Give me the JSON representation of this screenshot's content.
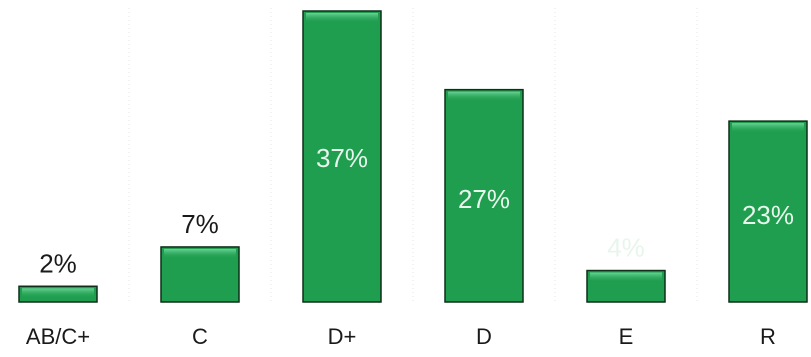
{
  "chart_data": {
    "type": "bar",
    "title": "",
    "xlabel": "",
    "ylabel": "",
    "categories": [
      "AB/C+",
      "C",
      "D+",
      "D",
      "E",
      "R"
    ],
    "values": [
      2,
      7,
      37,
      27,
      4,
      23
    ],
    "value_labels": [
      "2%",
      "7%",
      "37%",
      "27%",
      "4%",
      "23%"
    ],
    "value_unit": "%",
    "ylim": [
      0,
      37
    ],
    "grid": false,
    "legend": "none",
    "bar_color": "#1f9e4f",
    "bar_border_color": "#0f2f18",
    "label_inside_color": "#e8f5ec",
    "label_outside_color": "#1a1a1a"
  }
}
